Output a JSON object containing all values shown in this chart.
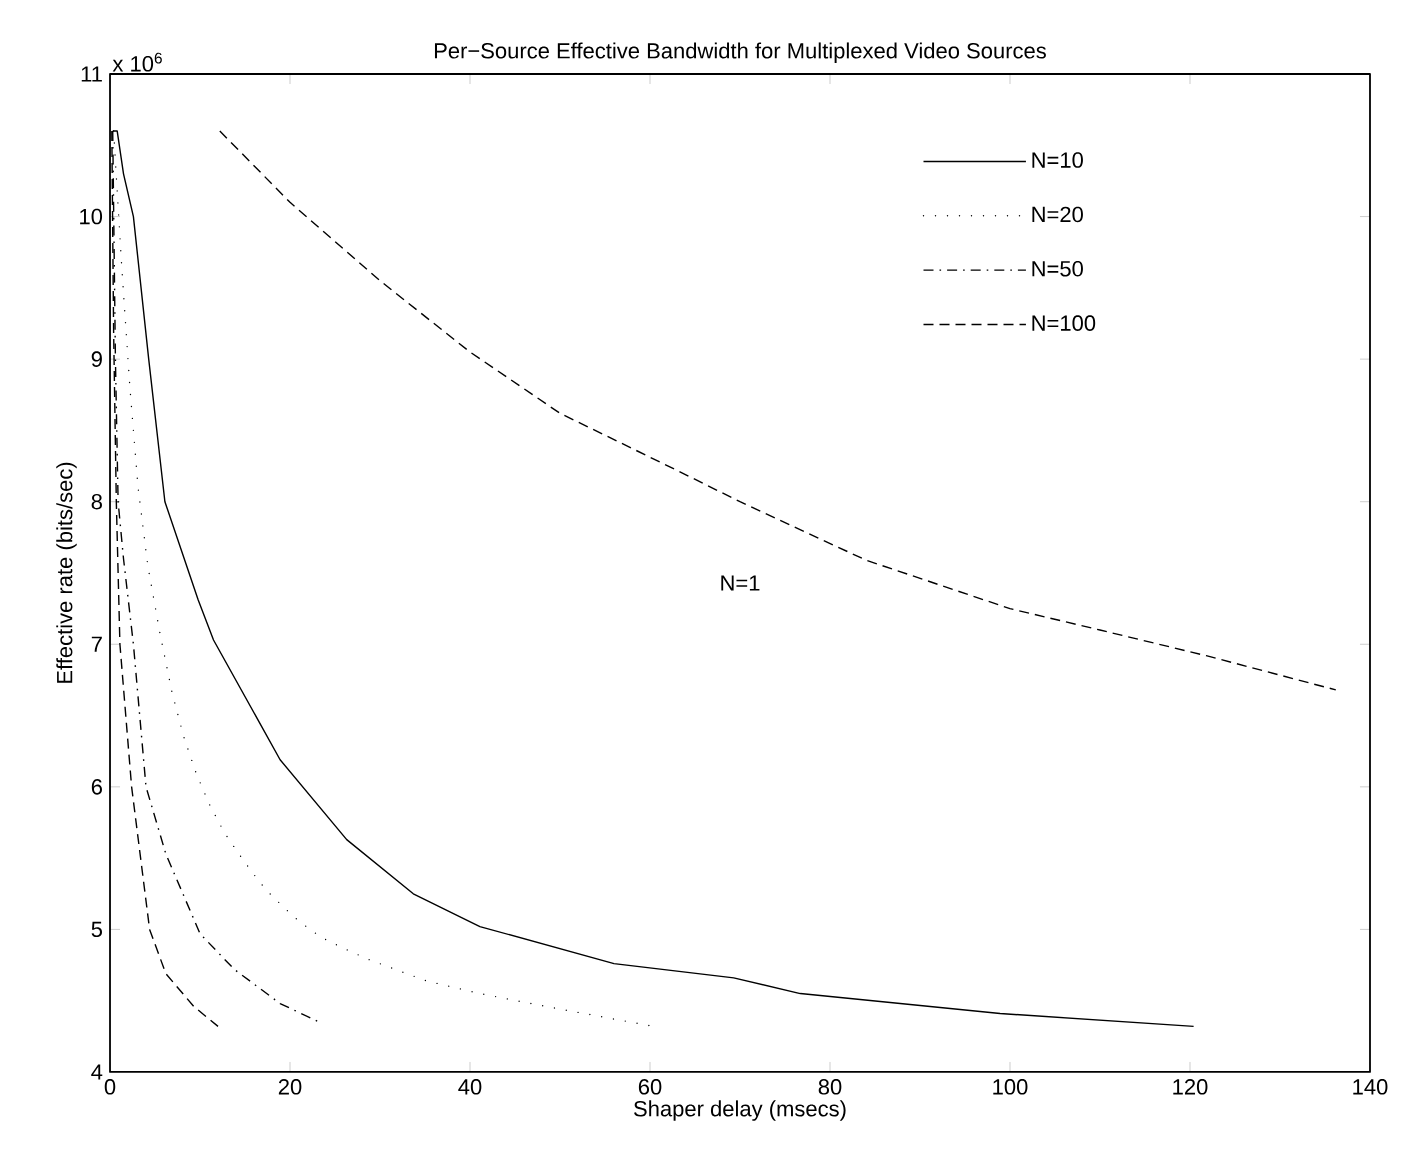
{
  "chart_data": {
    "type": "line",
    "title": "Per−Source Effective Bandwidth for Multiplexed Video Sources",
    "xlabel": "Shaper delay (msecs)",
    "ylabel": "Effective rate (bits/sec)",
    "annotations": [
      "x 10$^{6}$",
      "N=1"
    ],
    "xlim": [
      0,
      140
    ],
    "ylim": [
      4,
      11
    ],
    "xticks": [
      0,
      20,
      40,
      60,
      80,
      100,
      120,
      140
    ],
    "yticks": [
      4,
      5,
      6,
      7,
      8,
      9,
      10,
      11
    ],
    "legend": "top right",
    "marker": "none",
    "series": [
      {
        "name": "N=10",
        "color": "#000000",
        "line_style": "solid",
        "x": [
          0.3,
          0.8,
          1.5,
          2.6,
          4.3,
          6.1,
          9.8,
          11.5,
          18.9,
          26.3,
          33.7,
          41.1,
          56,
          69.3,
          76.7,
          98.9,
          120.4
        ],
        "values": [
          10.6,
          10.6,
          10.3,
          10.0,
          9.0,
          8.0,
          7.31,
          7.03,
          6.19,
          5.63,
          5.25,
          5.02,
          4.76,
          4.66,
          4.55,
          4.41,
          4.32
        ]
      },
      {
        "name": "N=20",
        "color": "#000000",
        "line_style": "dotted",
        "x": [
          0.4,
          1.3,
          2.2,
          3.1,
          4.2,
          5.6,
          6.9,
          8.2,
          9.6,
          11.1,
          12.7,
          14.2,
          15.8,
          17.3,
          18.9,
          20.4,
          22,
          23.6,
          26.9,
          28.7,
          35.1,
          41.1,
          48.4,
          60.4
        ],
        "values": [
          10.6,
          9.65,
          8.81,
          8.11,
          7.55,
          7.06,
          6.66,
          6.35,
          6.09,
          5.87,
          5.68,
          5.54,
          5.4,
          5.28,
          5.18,
          5.09,
          5.01,
          4.94,
          4.84,
          4.79,
          4.64,
          4.55,
          4.46,
          4.32
        ]
      },
      {
        "name": "N=50",
        "color": "#000000",
        "line_style": "dashdot",
        "x": [
          0.3,
          0.6,
          0.9,
          1.5,
          2.6,
          4,
          6.2,
          10,
          13.8,
          18.9,
          23.6
        ],
        "values": [
          10.6,
          9.0,
          8.0,
          7.6,
          7.0,
          6.0,
          5.53,
          4.97,
          4.72,
          4.48,
          4.34
        ]
      },
      {
        "name": "N=100",
        "color": "#000000",
        "line_style": "dashed",
        "x": [
          0.2,
          0.4,
          0.7,
          1.1,
          2.4,
          4.4,
          6.2,
          9.3,
          12
        ],
        "values": [
          10.6,
          9.2,
          8.0,
          7.0,
          6.0,
          5.0,
          4.69,
          4.46,
          4.32
        ]
      },
      {
        "color": "#000000",
        "line_style": "dashed",
        "x": [
          12.2,
          20,
          30,
          40,
          50,
          63,
          70,
          84,
          100,
          110,
          121.8,
          136.2
        ],
        "values": [
          10.6,
          10.1,
          9.55,
          9.05,
          8.62,
          8.22,
          8.0,
          7.59,
          7.25,
          7.1,
          6.92,
          6.68
        ]
      }
    ]
  }
}
